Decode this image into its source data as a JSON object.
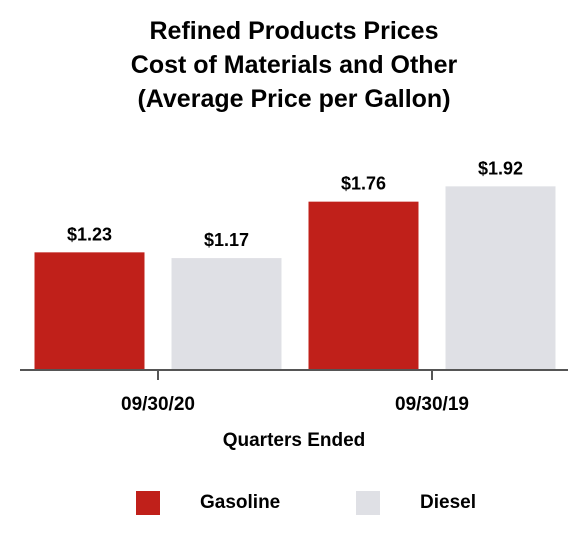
{
  "chart_data": {
    "type": "bar",
    "title_lines": [
      "Refined Products Prices",
      "Cost of Materials and Other",
      "(Average Price per Gallon)"
    ],
    "xlabel": "Quarters Ended",
    "ylabel": "",
    "categories": [
      "09/30/20",
      "09/30/19"
    ],
    "series": [
      {
        "name": "Gasoline",
        "color": "#c0201a",
        "values": [
          1.23,
          1.76
        ],
        "labels": [
          "$1.23",
          "$1.76"
        ]
      },
      {
        "name": "Diesel",
        "color": "#dfe0e5",
        "values": [
          1.17,
          1.92
        ],
        "labels": [
          "$1.17",
          "$1.92"
        ]
      }
    ],
    "ylim": [
      0,
      2.3
    ],
    "grid": false,
    "legend_position": "bottom"
  }
}
